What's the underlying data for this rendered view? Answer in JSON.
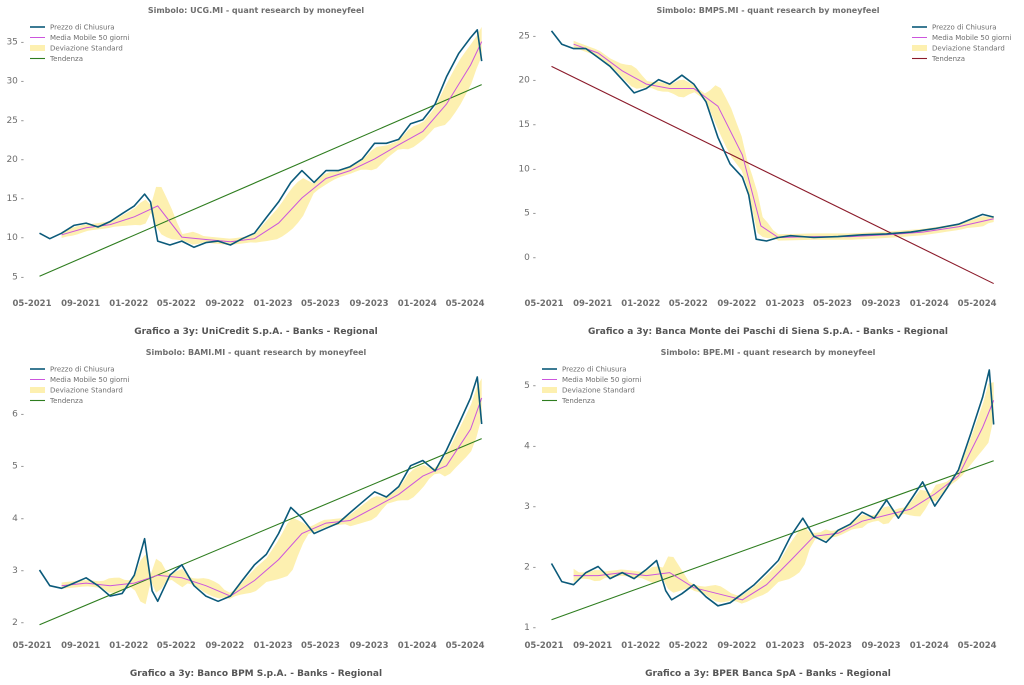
{
  "legend_labels": {
    "close": "Prezzo di Chiusura",
    "ma": "Media Mobile 50 giorni",
    "std": "Deviazione Standard",
    "trend": "Tendenza"
  },
  "colors": {
    "close": "#0b5a7a",
    "ma": "#cc55dd",
    "std_band": "#fdf0b0",
    "trend_up": "#2e7d1f",
    "trend_down": "#8b1a2a",
    "text": "#6e6e6e"
  },
  "chart_data": [
    {
      "type": "line",
      "title": "Simbolo: UCG.MI - quant research by moneyfeel",
      "caption": "Grafico a 3y: UniCredit S.p.A. - Banks - Regional",
      "x_ticks": [
        "05-2021",
        "09-2021",
        "01-2022",
        "05-2022",
        "09-2022",
        "01-2023",
        "05-2023",
        "09-2023",
        "01-2024",
        "05-2024"
      ],
      "x_range": [
        "2021-05",
        "2024-06"
      ],
      "y_ticks": [
        5,
        10,
        15,
        20,
        25,
        30,
        35
      ],
      "ylim": [
        3.5,
        37.5
      ],
      "legend_position": "top-left",
      "series": [
        {
          "name": "Prezzo di Chiusura",
          "x": [
            "2021-05-20",
            "2021-06-15",
            "2021-07-15",
            "2021-08-15",
            "2021-09-15",
            "2021-10-15",
            "2021-11-15",
            "2021-12-15",
            "2022-01-15",
            "2022-02-10",
            "2022-02-25",
            "2022-03-15",
            "2022-04-15",
            "2022-05-15",
            "2022-06-15",
            "2022-07-15",
            "2022-08-15",
            "2022-09-15",
            "2022-10-15",
            "2022-11-15",
            "2022-12-15",
            "2023-01-15",
            "2023-02-15",
            "2023-03-15",
            "2023-04-15",
            "2023-05-15",
            "2023-06-15",
            "2023-07-15",
            "2023-08-15",
            "2023-09-15",
            "2023-10-15",
            "2023-11-15",
            "2023-12-15",
            "2024-01-15",
            "2024-02-15",
            "2024-03-15",
            "2024-04-15",
            "2024-05-15",
            "2024-06-01",
            "2024-06-12"
          ],
          "values": [
            10.5,
            9.8,
            10.5,
            11.5,
            11.8,
            11.3,
            12.0,
            13.0,
            14.0,
            15.5,
            14.5,
            9.5,
            9.0,
            9.5,
            8.7,
            9.3,
            9.5,
            9.0,
            9.8,
            10.5,
            12.5,
            14.5,
            17.0,
            18.5,
            17.0,
            18.5,
            18.5,
            19.0,
            20.0,
            22.0,
            22.0,
            22.5,
            24.5,
            25.0,
            27.0,
            30.5,
            33.5,
            35.5,
            36.5,
            32.5
          ]
        },
        {
          "name": "Media Mobile 50 giorni",
          "x": [
            "2021-07-15",
            "2021-09-15",
            "2021-11-15",
            "2022-01-15",
            "2022-03-15",
            "2022-05-15",
            "2022-07-15",
            "2022-09-15",
            "2022-11-15",
            "2023-01-15",
            "2023-03-15",
            "2023-05-15",
            "2023-07-15",
            "2023-09-15",
            "2023-11-15",
            "2024-01-15",
            "2024-03-15",
            "2024-05-15",
            "2024-06-12"
          ],
          "values": [
            10.3,
            11.2,
            11.6,
            12.6,
            14.0,
            10.0,
            9.7,
            9.4,
            9.8,
            11.8,
            15.0,
            17.5,
            18.5,
            20.0,
            21.8,
            23.5,
            27.0,
            32.0,
            35.0
          ]
        },
        {
          "name": "Tendenza",
          "x": [
            "2021-05-20",
            "2024-06-12"
          ],
          "values": [
            5.0,
            29.5
          ]
        }
      ]
    },
    {
      "type": "line",
      "title": "Simbolo: BMPS.MI - quant research by moneyfeel",
      "caption": "Grafico a 3y: Banca Monte dei Paschi di Siena S.p.A. - Banks - Regional",
      "x_ticks": [
        "05-2021",
        "09-2021",
        "01-2022",
        "05-2022",
        "09-2022",
        "01-2023",
        "05-2023",
        "09-2023",
        "01-2024",
        "05-2024"
      ],
      "x_range": [
        "2021-05",
        "2024-06"
      ],
      "y_ticks": [
        0,
        5,
        10,
        15,
        20,
        25
      ],
      "ylim": [
        -3.5,
        26.5
      ],
      "legend_position": "top-right",
      "series": [
        {
          "name": "Prezzo di Chiusura",
          "x": [
            "2021-05-20",
            "2021-06-15",
            "2021-07-15",
            "2021-08-15",
            "2021-09-15",
            "2021-10-15",
            "2021-11-15",
            "2021-12-15",
            "2022-01-15",
            "2022-02-15",
            "2022-03-15",
            "2022-04-15",
            "2022-05-15",
            "2022-06-15",
            "2022-07-15",
            "2022-08-15",
            "2022-09-15",
            "2022-10-01",
            "2022-10-20",
            "2022-11-15",
            "2022-12-15",
            "2023-01-15",
            "2023-03-15",
            "2023-05-15",
            "2023-07-15",
            "2023-09-15",
            "2023-11-15",
            "2024-01-15",
            "2024-03-15",
            "2024-05-15",
            "2024-06-12"
          ],
          "values": [
            25.5,
            24.0,
            23.5,
            23.5,
            22.5,
            21.5,
            20.0,
            18.5,
            19.0,
            20.0,
            19.5,
            20.5,
            19.5,
            17.5,
            13.5,
            10.5,
            9.0,
            7.0,
            2.0,
            1.8,
            2.2,
            2.4,
            2.2,
            2.3,
            2.5,
            2.6,
            2.8,
            3.2,
            3.7,
            4.8,
            4.5
          ]
        },
        {
          "name": "Media Mobile 50 giorni",
          "x": [
            "2021-07-15",
            "2021-09-15",
            "2021-11-15",
            "2022-01-15",
            "2022-03-15",
            "2022-05-15",
            "2022-07-15",
            "2022-09-15",
            "2022-11-01",
            "2022-12-15",
            "2023-03-15",
            "2023-06-15",
            "2023-09-15",
            "2023-12-15",
            "2024-03-15",
            "2024-06-12"
          ],
          "values": [
            24.0,
            23.0,
            21.0,
            19.5,
            19.0,
            19.0,
            17.0,
            11.5,
            3.5,
            2.2,
            2.3,
            2.3,
            2.5,
            2.8,
            3.4,
            4.3
          ]
        },
        {
          "name": "Tendenza",
          "x": [
            "2021-05-20",
            "2024-06-12"
          ],
          "values": [
            21.5,
            -3.0
          ]
        }
      ]
    },
    {
      "type": "line",
      "title": "Simbolo: BAMI.MI - quant research by moneyfeel",
      "caption": "Grafico a 3y: Banco BPM S.p.A. - Banks - Regional",
      "x_ticks": [
        "05-2021",
        "09-2021",
        "01-2022",
        "05-2022",
        "09-2022",
        "01-2023",
        "05-2023",
        "09-2023",
        "01-2024",
        "05-2024"
      ],
      "x_range": [
        "2021-05",
        "2024-06"
      ],
      "y_ticks": [
        2,
        3,
        4,
        5,
        6
      ],
      "ylim": [
        1.85,
        6.95
      ],
      "legend_position": "top-left",
      "series": [
        {
          "name": "Prezzo di Chiusura",
          "x": [
            "2021-05-20",
            "2021-06-15",
            "2021-07-15",
            "2021-08-15",
            "2021-09-15",
            "2021-10-15",
            "2021-11-15",
            "2021-12-15",
            "2022-01-15",
            "2022-02-10",
            "2022-03-01",
            "2022-03-15",
            "2022-04-15",
            "2022-05-15",
            "2022-06-15",
            "2022-07-15",
            "2022-08-15",
            "2022-09-15",
            "2022-10-15",
            "2022-11-15",
            "2022-12-15",
            "2023-01-15",
            "2023-02-15",
            "2023-03-15",
            "2023-04-15",
            "2023-05-15",
            "2023-06-15",
            "2023-07-15",
            "2023-08-15",
            "2023-09-15",
            "2023-10-15",
            "2023-11-15",
            "2023-12-15",
            "2024-01-15",
            "2024-02-15",
            "2024-03-15",
            "2024-04-15",
            "2024-05-15",
            "2024-06-01",
            "2024-06-12"
          ],
          "values": [
            3.0,
            2.7,
            2.65,
            2.75,
            2.85,
            2.7,
            2.5,
            2.55,
            2.9,
            3.6,
            2.6,
            2.4,
            2.9,
            3.1,
            2.7,
            2.5,
            2.4,
            2.5,
            2.8,
            3.1,
            3.3,
            3.7,
            4.2,
            4.0,
            3.7,
            3.8,
            3.9,
            4.1,
            4.3,
            4.5,
            4.4,
            4.6,
            5.0,
            5.1,
            4.9,
            5.3,
            5.8,
            6.3,
            6.7,
            5.8
          ]
        },
        {
          "name": "Media Mobile 50 giorni",
          "x": [
            "2021-07-15",
            "2021-09-15",
            "2021-11-15",
            "2022-01-15",
            "2022-03-15",
            "2022-05-15",
            "2022-07-15",
            "2022-09-15",
            "2022-11-15",
            "2023-01-15",
            "2023-03-15",
            "2023-05-15",
            "2023-07-15",
            "2023-09-15",
            "2023-11-15",
            "2024-01-15",
            "2024-03-15",
            "2024-05-15",
            "2024-06-12"
          ],
          "values": [
            2.7,
            2.75,
            2.7,
            2.75,
            2.9,
            2.85,
            2.7,
            2.5,
            2.8,
            3.2,
            3.7,
            3.9,
            3.95,
            4.2,
            4.45,
            4.8,
            5.0,
            5.7,
            6.3
          ]
        },
        {
          "name": "Tendenza",
          "x": [
            "2021-05-20",
            "2024-06-12"
          ],
          "values": [
            1.95,
            5.52
          ]
        }
      ]
    },
    {
      "type": "line",
      "title": "Simbolo: BPE.MI - quant research by moneyfeel",
      "caption": "Grafico a 3y: BPER Banca SpA - Banks - Regional",
      "x_ticks": [
        "05-2021",
        "09-2021",
        "01-2022",
        "05-2022",
        "09-2022",
        "01-2023",
        "05-2023",
        "09-2023",
        "01-2024",
        "05-2024"
      ],
      "x_range": [
        "2021-05",
        "2024-06"
      ],
      "y_ticks": [
        1,
        2,
        3,
        4,
        5
      ],
      "ylim": [
        0.95,
        5.35
      ],
      "legend_position": "top-left",
      "series": [
        {
          "name": "Prezzo di Chiusura",
          "x": [
            "2021-05-20",
            "2021-06-15",
            "2021-07-15",
            "2021-08-15",
            "2021-09-15",
            "2021-10-15",
            "2021-11-15",
            "2021-12-15",
            "2022-01-15",
            "2022-02-10",
            "2022-03-05",
            "2022-03-20",
            "2022-04-15",
            "2022-05-15",
            "2022-06-15",
            "2022-07-15",
            "2022-08-15",
            "2022-09-15",
            "2022-10-15",
            "2022-11-15",
            "2022-12-15",
            "2023-01-15",
            "2023-02-15",
            "2023-03-15",
            "2023-04-15",
            "2023-05-15",
            "2023-06-15",
            "2023-07-15",
            "2023-08-15",
            "2023-09-15",
            "2023-10-15",
            "2023-11-15",
            "2023-12-15",
            "2024-01-15",
            "2024-02-15",
            "2024-03-15",
            "2024-04-15",
            "2024-05-15",
            "2024-06-01",
            "2024-06-12"
          ],
          "values": [
            2.05,
            1.75,
            1.7,
            1.9,
            2.0,
            1.8,
            1.9,
            1.8,
            1.95,
            2.1,
            1.6,
            1.45,
            1.55,
            1.7,
            1.5,
            1.35,
            1.4,
            1.55,
            1.7,
            1.9,
            2.1,
            2.5,
            2.8,
            2.5,
            2.4,
            2.6,
            2.7,
            2.9,
            2.8,
            3.1,
            2.8,
            3.1,
            3.4,
            3.0,
            3.3,
            3.6,
            4.2,
            4.8,
            5.25,
            4.35
          ]
        },
        {
          "name": "Media Mobile 50 giorni",
          "x": [
            "2021-07-15",
            "2021-09-15",
            "2021-11-15",
            "2022-01-15",
            "2022-03-15",
            "2022-05-15",
            "2022-07-15",
            "2022-09-15",
            "2022-11-15",
            "2023-01-15",
            "2023-03-15",
            "2023-05-15",
            "2023-07-15",
            "2023-09-15",
            "2023-11-15",
            "2024-01-15",
            "2024-03-15",
            "2024-05-15",
            "2024-06-12"
          ],
          "values": [
            1.85,
            1.85,
            1.9,
            1.85,
            1.9,
            1.65,
            1.55,
            1.45,
            1.7,
            2.1,
            2.5,
            2.55,
            2.75,
            2.85,
            2.95,
            3.2,
            3.5,
            4.3,
            4.75
          ]
        },
        {
          "name": "Tendenza",
          "x": [
            "2021-05-20",
            "2024-06-12"
          ],
          "values": [
            1.12,
            3.75
          ]
        }
      ]
    }
  ]
}
